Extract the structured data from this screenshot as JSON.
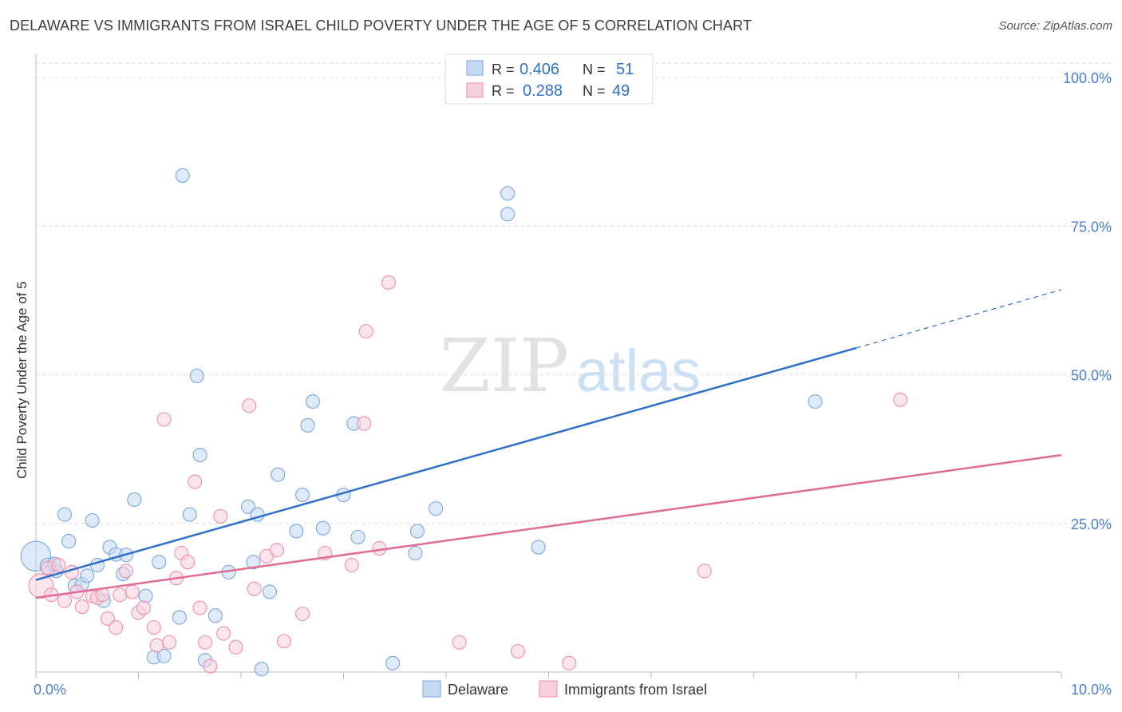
{
  "title": "DELAWARE VS IMMIGRANTS FROM ISRAEL CHILD POVERTY UNDER THE AGE OF 5 CORRELATION CHART",
  "source": "Source: ZipAtlas.com",
  "watermark": {
    "zip": "ZIP",
    "atlas": "atlas"
  },
  "legend_top": [
    {
      "r_label": "R =",
      "r_value": "0.406",
      "n_label": "N =",
      "n_value": "51",
      "color": "#7aa6e0"
    },
    {
      "r_label": "R =",
      "r_value": "0.288",
      "n_label": "N =",
      "n_value": "49",
      "color": "#ee8fab"
    }
  ],
  "chart_data": {
    "type": "scatter",
    "title": "DELAWARE VS IMMIGRANTS FROM ISRAEL CHILD POVERTY UNDER THE AGE OF 5 CORRELATION CHART",
    "xlabel": "",
    "ylabel": "Child Poverty Under the Age of 5",
    "xlim": [
      0,
      10
    ],
    "ylim": [
      0,
      100
    ],
    "x_tick_labels": [
      {
        "value": 0,
        "label": "0.0%"
      },
      {
        "value": 10,
        "label": "10.0%"
      }
    ],
    "y_tick_labels": [
      {
        "value": 25,
        "label": "25.0%"
      },
      {
        "value": 50,
        "label": "50.0%"
      },
      {
        "value": 75,
        "label": "75.0%"
      },
      {
        "value": 100,
        "label": "100.0%"
      }
    ],
    "legend_position": "bottom-center",
    "series": [
      {
        "name": "Delaware",
        "color": "#7aa6e0",
        "fill": "#c5d9f3",
        "line_color": "#2f70c8",
        "r": 0.406,
        "n": 51,
        "trend": {
          "x0": 0,
          "y0": 15.5,
          "x1": 8.0,
          "y1": 54.5,
          "x_dash_end": 10.0,
          "y_dash_end": 64.3
        },
        "points": [
          [
            0.0,
            19.5,
            2.2
          ],
          [
            0.12,
            17.8,
            1.2
          ],
          [
            0.2,
            17.0,
            1.0
          ],
          [
            0.28,
            26.5,
            1.0
          ],
          [
            0.32,
            22.0,
            1.0
          ],
          [
            0.38,
            14.5,
            1.0
          ],
          [
            0.45,
            14.8,
            1.0
          ],
          [
            0.5,
            16.2,
            1.0
          ],
          [
            0.55,
            25.5,
            1.0
          ],
          [
            0.6,
            18.0,
            1.0
          ],
          [
            0.66,
            12.0,
            1.0
          ],
          [
            0.72,
            21.0,
            1.0
          ],
          [
            0.78,
            19.8,
            1.0
          ],
          [
            0.85,
            16.5,
            1.0
          ],
          [
            0.88,
            19.7,
            1.0
          ],
          [
            0.96,
            29.0,
            1.0
          ],
          [
            1.07,
            12.8,
            1.0
          ],
          [
            1.15,
            2.5,
            1.0
          ],
          [
            1.2,
            18.5,
            1.0
          ],
          [
            1.25,
            2.7,
            1.0
          ],
          [
            1.4,
            9.2,
            1.0
          ],
          [
            1.43,
            83.5,
            1.0
          ],
          [
            1.5,
            26.5,
            1.0
          ],
          [
            1.57,
            49.8,
            1.0
          ],
          [
            1.6,
            36.5,
            1.0
          ],
          [
            1.65,
            2.0,
            1.0
          ],
          [
            1.75,
            9.5,
            1.0
          ],
          [
            1.88,
            16.8,
            1.0
          ],
          [
            2.07,
            27.8,
            1.0
          ],
          [
            2.12,
            18.5,
            1.0
          ],
          [
            2.16,
            26.5,
            1.0
          ],
          [
            2.2,
            0.5,
            1.0
          ],
          [
            2.28,
            13.5,
            1.0
          ],
          [
            2.36,
            33.2,
            1.0
          ],
          [
            2.54,
            23.7,
            1.0
          ],
          [
            2.6,
            29.8,
            1.0
          ],
          [
            2.65,
            41.5,
            1.0
          ],
          [
            2.7,
            45.5,
            1.0
          ],
          [
            2.8,
            24.2,
            1.0
          ],
          [
            3.0,
            29.8,
            1.0
          ],
          [
            3.1,
            41.8,
            1.0
          ],
          [
            3.14,
            22.7,
            1.0
          ],
          [
            3.48,
            1.5,
            1.0
          ],
          [
            3.7,
            20.0,
            1.0
          ],
          [
            3.72,
            23.7,
            1.0
          ],
          [
            3.9,
            27.5,
            1.0
          ],
          [
            4.6,
            80.5,
            1.0
          ],
          [
            4.6,
            77.0,
            1.0
          ],
          [
            4.9,
            21.0,
            1.0
          ],
          [
            7.6,
            45.5,
            1.0
          ],
          [
            0.18,
            18.2,
            1.0
          ]
        ]
      },
      {
        "name": "Immigrants from Israel",
        "color": "#ee8fab",
        "fill": "#f8cfdc",
        "line_color": "#e06b93",
        "r": 0.288,
        "n": 49,
        "trend": {
          "x0": 0,
          "y0": 12.5,
          "x1": 10.0,
          "y1": 36.5
        },
        "points": [
          [
            0.05,
            14.5,
            1.8
          ],
          [
            0.12,
            17.5,
            1.0
          ],
          [
            0.15,
            13.0,
            1.0
          ],
          [
            0.22,
            18.0,
            1.0
          ],
          [
            0.28,
            12.0,
            1.0
          ],
          [
            0.35,
            16.8,
            1.0
          ],
          [
            0.4,
            13.5,
            1.0
          ],
          [
            0.45,
            11.0,
            1.0
          ],
          [
            0.55,
            12.8,
            1.0
          ],
          [
            0.6,
            12.5,
            1.0
          ],
          [
            0.65,
            13.0,
            1.0
          ],
          [
            0.7,
            9.0,
            1.0
          ],
          [
            0.78,
            7.5,
            1.0
          ],
          [
            0.82,
            13.0,
            1.0
          ],
          [
            0.88,
            17.0,
            1.0
          ],
          [
            0.94,
            13.5,
            1.0
          ],
          [
            1.0,
            10.0,
            1.0
          ],
          [
            1.05,
            10.8,
            1.0
          ],
          [
            1.15,
            7.5,
            1.0
          ],
          [
            1.18,
            4.5,
            1.0
          ],
          [
            1.25,
            42.5,
            1.0
          ],
          [
            1.3,
            5.0,
            1.0
          ],
          [
            1.37,
            15.8,
            1.0
          ],
          [
            1.42,
            20.0,
            1.0
          ],
          [
            1.48,
            18.5,
            1.0
          ],
          [
            1.55,
            32.0,
            1.0
          ],
          [
            1.6,
            10.8,
            1.0
          ],
          [
            1.65,
            5.0,
            1.0
          ],
          [
            1.7,
            1.0,
            1.0
          ],
          [
            1.8,
            26.2,
            1.0
          ],
          [
            1.83,
            6.5,
            1.0
          ],
          [
            1.95,
            4.2,
            1.0
          ],
          [
            2.08,
            44.8,
            1.0
          ],
          [
            2.13,
            14.0,
            1.0
          ],
          [
            2.25,
            19.5,
            1.0
          ],
          [
            2.35,
            20.5,
            1.0
          ],
          [
            2.42,
            5.2,
            1.0
          ],
          [
            2.6,
            9.8,
            1.0
          ],
          [
            2.82,
            20.0,
            1.0
          ],
          [
            3.08,
            18.0,
            1.0
          ],
          [
            3.2,
            41.8,
            1.0
          ],
          [
            3.22,
            57.3,
            1.0
          ],
          [
            3.35,
            20.8,
            1.0
          ],
          [
            3.44,
            65.5,
            1.0
          ],
          [
            4.13,
            5.0,
            1.0
          ],
          [
            4.7,
            3.5,
            1.0
          ],
          [
            5.2,
            1.5,
            1.0
          ],
          [
            6.52,
            17.0,
            1.0
          ],
          [
            8.43,
            45.8,
            1.0
          ]
        ]
      }
    ]
  }
}
